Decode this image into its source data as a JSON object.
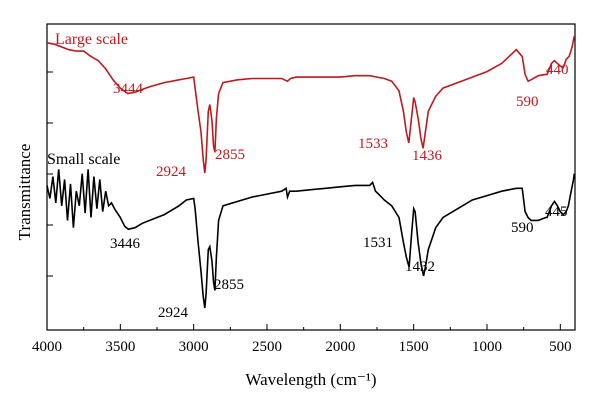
{
  "chart_data": {
    "type": "line",
    "title": "",
    "xlabel": "Wavelength (cm⁻¹)",
    "ylabel": "Transmittance",
    "xlim": [
      4000,
      400
    ],
    "x_reversed": true,
    "y_tick_labels_shown": false,
    "grid": false,
    "x_ticks": [
      4000,
      3500,
      3000,
      2500,
      2000,
      1500,
      1000,
      500
    ],
    "x_tick_labels": [
      "4000",
      "3500",
      "3000",
      "2500",
      "2000",
      "1500",
      "1000",
      "500"
    ],
    "colors": {
      "large": "#c0191d",
      "small": "#000000",
      "axis": "#000000"
    },
    "series": [
      {
        "name": "Large scale",
        "color": "#c0191d",
        "points": [
          [
            4000,
            0.95
          ],
          [
            3950,
            0.94
          ],
          [
            3900,
            0.92
          ],
          [
            3850,
            0.9
          ],
          [
            3800,
            0.89
          ],
          [
            3750,
            0.89
          ],
          [
            3700,
            0.85
          ],
          [
            3650,
            0.82
          ],
          [
            3600,
            0.76
          ],
          [
            3550,
            0.68
          ],
          [
            3500,
            0.62
          ],
          [
            3450,
            0.58
          ],
          [
            3400,
            0.59
          ],
          [
            3350,
            0.61
          ],
          [
            3300,
            0.63
          ],
          [
            3200,
            0.66
          ],
          [
            3100,
            0.68
          ],
          [
            3050,
            0.69
          ],
          [
            3000,
            0.7
          ],
          [
            2990,
            0.62
          ],
          [
            2970,
            0.45
          ],
          [
            2950,
            0.3
          ],
          [
            2935,
            0.1
          ],
          [
            2924,
            0.0
          ],
          [
            2915,
            0.1
          ],
          [
            2900,
            0.45
          ],
          [
            2890,
            0.5
          ],
          [
            2875,
            0.38
          ],
          [
            2865,
            0.2
          ],
          [
            2855,
            0.15
          ],
          [
            2845,
            0.4
          ],
          [
            2830,
            0.58
          ],
          [
            2800,
            0.66
          ],
          [
            2700,
            0.68
          ],
          [
            2600,
            0.69
          ],
          [
            2500,
            0.69
          ],
          [
            2400,
            0.69
          ],
          [
            2360,
            0.67
          ],
          [
            2340,
            0.69
          ],
          [
            2300,
            0.7
          ],
          [
            2200,
            0.7
          ],
          [
            2100,
            0.7
          ],
          [
            2000,
            0.7
          ],
          [
            1900,
            0.71
          ],
          [
            1800,
            0.71
          ],
          [
            1750,
            0.7
          ],
          [
            1700,
            0.69
          ],
          [
            1650,
            0.67
          ],
          [
            1600,
            0.6
          ],
          [
            1570,
            0.45
          ],
          [
            1550,
            0.3
          ],
          [
            1533,
            0.22
          ],
          [
            1515,
            0.4
          ],
          [
            1500,
            0.55
          ],
          [
            1490,
            0.52
          ],
          [
            1470,
            0.4
          ],
          [
            1450,
            0.25
          ],
          [
            1436,
            0.18
          ],
          [
            1420,
            0.3
          ],
          [
            1400,
            0.45
          ],
          [
            1350,
            0.56
          ],
          [
            1300,
            0.62
          ],
          [
            1200,
            0.66
          ],
          [
            1100,
            0.7
          ],
          [
            1000,
            0.74
          ],
          [
            900,
            0.8
          ],
          [
            800,
            0.9
          ],
          [
            760,
            0.85
          ],
          [
            740,
            0.72
          ],
          [
            720,
            0.67
          ],
          [
            700,
            0.68
          ],
          [
            650,
            0.71
          ],
          [
            600,
            0.72
          ],
          [
            590,
            0.72
          ],
          [
            560,
            0.8
          ],
          [
            540,
            0.82
          ],
          [
            520,
            0.8
          ],
          [
            500,
            0.78
          ],
          [
            480,
            0.77
          ],
          [
            460,
            0.83
          ],
          [
            440,
            0.85
          ],
          [
            420,
            0.92
          ],
          [
            405,
            1.0
          ]
        ],
        "annotations": [
          "3444",
          "2924",
          "2855",
          "1533",
          "1436",
          "590",
          "440"
        ]
      },
      {
        "name": "Small scale",
        "color": "#000000",
        "points": [
          [
            4000,
            0.84
          ],
          [
            3980,
            0.75
          ],
          [
            3960,
            0.9
          ],
          [
            3940,
            0.72
          ],
          [
            3920,
            0.95
          ],
          [
            3900,
            0.7
          ],
          [
            3880,
            0.88
          ],
          [
            3860,
            0.6
          ],
          [
            3840,
            0.85
          ],
          [
            3820,
            0.55
          ],
          [
            3800,
            0.8
          ],
          [
            3780,
            0.7
          ],
          [
            3760,
            0.92
          ],
          [
            3740,
            0.65
          ],
          [
            3720,
            0.95
          ],
          [
            3700,
            0.62
          ],
          [
            3680,
            0.9
          ],
          [
            3660,
            0.68
          ],
          [
            3640,
            0.88
          ],
          [
            3620,
            0.66
          ],
          [
            3600,
            0.8
          ],
          [
            3580,
            0.7
          ],
          [
            3560,
            0.72
          ],
          [
            3540,
            0.68
          ],
          [
            3500,
            0.62
          ],
          [
            3470,
            0.56
          ],
          [
            3446,
            0.54
          ],
          [
            3400,
            0.55
          ],
          [
            3350,
            0.58
          ],
          [
            3300,
            0.6
          ],
          [
            3200,
            0.64
          ],
          [
            3100,
            0.7
          ],
          [
            3050,
            0.74
          ],
          [
            3000,
            0.75
          ],
          [
            2990,
            0.68
          ],
          [
            2970,
            0.45
          ],
          [
            2950,
            0.25
          ],
          [
            2935,
            0.08
          ],
          [
            2924,
            0.0
          ],
          [
            2915,
            0.1
          ],
          [
            2900,
            0.4
          ],
          [
            2890,
            0.42
          ],
          [
            2875,
            0.32
          ],
          [
            2865,
            0.18
          ],
          [
            2855,
            0.12
          ],
          [
            2845,
            0.35
          ],
          [
            2830,
            0.6
          ],
          [
            2800,
            0.7
          ],
          [
            2700,
            0.73
          ],
          [
            2600,
            0.76
          ],
          [
            2500,
            0.78
          ],
          [
            2400,
            0.8
          ],
          [
            2370,
            0.82
          ],
          [
            2360,
            0.76
          ],
          [
            2345,
            0.8
          ],
          [
            2300,
            0.8
          ],
          [
            2200,
            0.81
          ],
          [
            2100,
            0.82
          ],
          [
            2000,
            0.83
          ],
          [
            1900,
            0.84
          ],
          [
            1800,
            0.84
          ],
          [
            1780,
            0.86
          ],
          [
            1760,
            0.8
          ],
          [
            1740,
            0.78
          ],
          [
            1700,
            0.74
          ],
          [
            1650,
            0.7
          ],
          [
            1600,
            0.62
          ],
          [
            1570,
            0.45
          ],
          [
            1550,
            0.35
          ],
          [
            1531,
            0.28
          ],
          [
            1515,
            0.5
          ],
          [
            1500,
            0.68
          ],
          [
            1490,
            0.66
          ],
          [
            1470,
            0.45
          ],
          [
            1450,
            0.3
          ],
          [
            1432,
            0.22
          ],
          [
            1420,
            0.28
          ],
          [
            1400,
            0.4
          ],
          [
            1350,
            0.55
          ],
          [
            1300,
            0.62
          ],
          [
            1200,
            0.68
          ],
          [
            1100,
            0.74
          ],
          [
            1000,
            0.77
          ],
          [
            900,
            0.8
          ],
          [
            800,
            0.82
          ],
          [
            760,
            0.82
          ],
          [
            740,
            0.66
          ],
          [
            720,
            0.62
          ],
          [
            700,
            0.6
          ],
          [
            650,
            0.6
          ],
          [
            600,
            0.62
          ],
          [
            590,
            0.62
          ],
          [
            560,
            0.7
          ],
          [
            540,
            0.73
          ],
          [
            520,
            0.7
          ],
          [
            500,
            0.66
          ],
          [
            480,
            0.64
          ],
          [
            460,
            0.66
          ],
          [
            445,
            0.7
          ],
          [
            430,
            0.78
          ],
          [
            410,
            0.88
          ],
          [
            405,
            0.92
          ]
        ],
        "annotations": [
          "3446",
          "2924",
          "2855",
          "1531",
          "1432",
          "590",
          "445"
        ]
      }
    ]
  }
}
